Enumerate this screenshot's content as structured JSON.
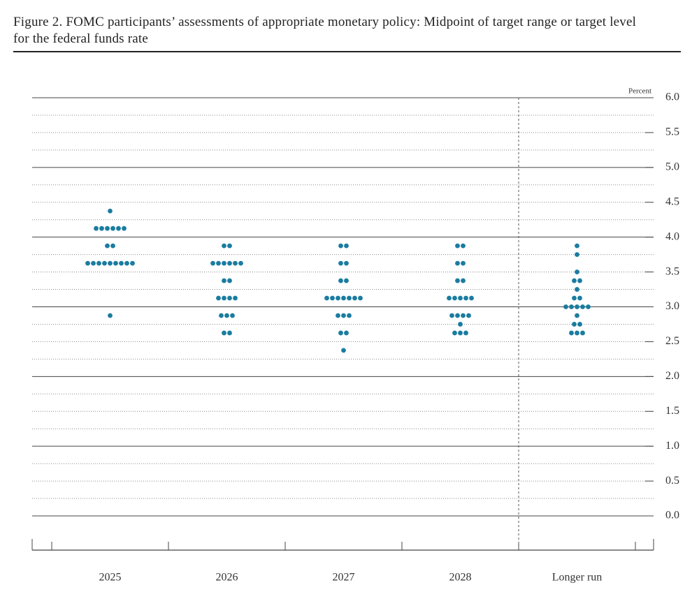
{
  "chart_data": {
    "type": "dot",
    "title": "Figure 2. FOMC participants’ assessments of appropriate monetary policy: Midpoint of target range or target level for the federal funds rate",
    "y_label": "Percent",
    "categories": [
      "2025",
      "2026",
      "2027",
      "2028",
      "Longer run"
    ],
    "color": "#1a7ca0",
    "points": [
      [
        {
          "y": 4.375,
          "count": 1
        },
        {
          "y": 4.125,
          "count": 6
        },
        {
          "y": 3.875,
          "count": 2
        },
        {
          "y": 3.625,
          "count": 9
        },
        {
          "y": 2.875,
          "count": 1
        }
      ],
      [
        {
          "y": 3.875,
          "count": 2
        },
        {
          "y": 3.625,
          "count": 6
        },
        {
          "y": 3.375,
          "count": 2
        },
        {
          "y": 3.125,
          "count": 4
        },
        {
          "y": 2.875,
          "count": 3
        },
        {
          "y": 2.625,
          "count": 2
        }
      ],
      [
        {
          "y": 3.875,
          "count": 2
        },
        {
          "y": 3.625,
          "count": 2
        },
        {
          "y": 3.375,
          "count": 2
        },
        {
          "y": 3.125,
          "count": 7
        },
        {
          "y": 2.875,
          "count": 3
        },
        {
          "y": 2.625,
          "count": 2
        },
        {
          "y": 2.375,
          "count": 1
        }
      ],
      [
        {
          "y": 3.875,
          "count": 2
        },
        {
          "y": 3.625,
          "count": 2
        },
        {
          "y": 3.375,
          "count": 2
        },
        {
          "y": 3.125,
          "count": 5
        },
        {
          "y": 2.875,
          "count": 4
        },
        {
          "y": 2.75,
          "count": 1
        },
        {
          "y": 2.625,
          "count": 3
        }
      ],
      [
        {
          "y": 3.875,
          "count": 1
        },
        {
          "y": 3.75,
          "count": 1
        },
        {
          "y": 3.5,
          "count": 1
        },
        {
          "y": 3.375,
          "count": 2
        },
        {
          "y": 3.25,
          "count": 1
        },
        {
          "y": 3.125,
          "count": 2
        },
        {
          "y": 3.0,
          "count": 5
        },
        {
          "y": 2.875,
          "count": 1
        },
        {
          "y": 2.75,
          "count": 2
        },
        {
          "y": 2.625,
          "count": 3
        }
      ]
    ],
    "ylim": [
      0,
      6
    ],
    "yticks": [
      {
        "value": 0,
        "label": "0.0"
      },
      0.5,
      {
        "value": 1,
        "label": "1.0"
      },
      1.5,
      {
        "value": 2,
        "label": "2.0"
      },
      2.5,
      {
        "value": 3,
        "label": "3.0"
      },
      3.5,
      {
        "value": 4,
        "label": "4.0"
      },
      4.5,
      {
        "value": 5,
        "label": "5.0"
      },
      5.5,
      {
        "value": 6,
        "label": "6.0"
      }
    ],
    "minor_yticks": [
      0.25,
      0.75,
      1.25,
      1.75,
      2.25,
      2.75,
      3.25,
      3.75,
      4.25,
      4.75,
      5.25,
      5.75
    ],
    "grid": true
  }
}
